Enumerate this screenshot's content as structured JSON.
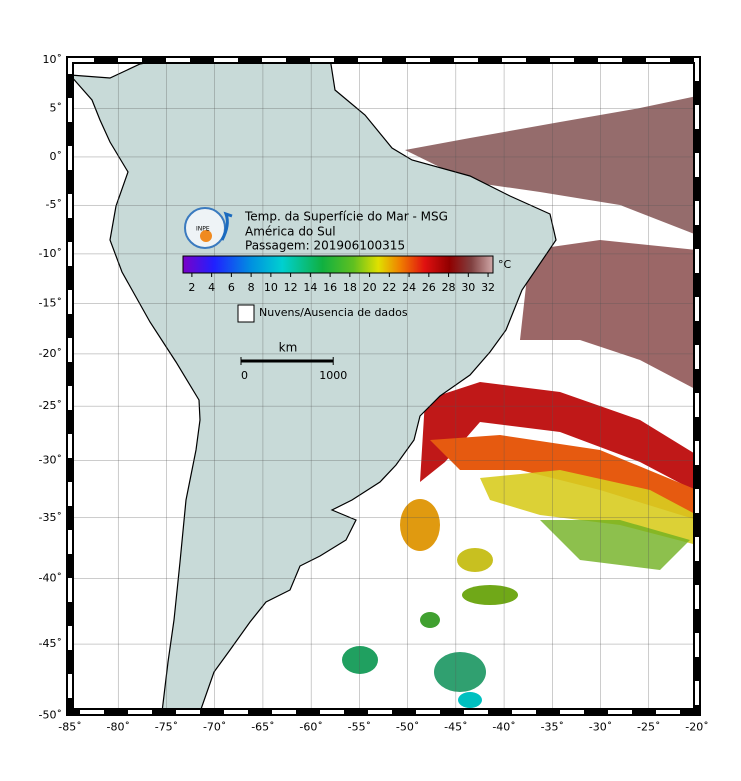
{
  "header": {
    "title": "Temp. da Superfície do Mar - MSG",
    "region": "América do Sul",
    "pass": "Passagem: 201906100315",
    "logo": "INPE"
  },
  "colorbar": {
    "range": [
      1.1,
      32.5
    ],
    "ticks": [
      2,
      4,
      6,
      8,
      10,
      12,
      14,
      16,
      18,
      20,
      22,
      24,
      26,
      28,
      30,
      32
    ],
    "unit": "°C"
  },
  "legend": {
    "label": "Nuvens/Ausencia de dados"
  },
  "scale_bar": {
    "unit": "km",
    "labels": [
      0,
      1000
    ]
  },
  "map": {
    "projection": "mercator",
    "xlim": [
      -85,
      -20
    ],
    "ylim": [
      -50,
      10
    ],
    "xticks": [
      {
        "value": -85,
        "label": "-85˚"
      },
      {
        "value": -80,
        "label": "-80˚"
      },
      {
        "value": -75,
        "label": "-75˚"
      },
      {
        "value": -70,
        "label": "-70˚"
      },
      {
        "value": -65,
        "label": "-65˚"
      },
      {
        "value": -60,
        "label": "-60˚"
      },
      {
        "value": -55,
        "label": "-55˚"
      },
      {
        "value": -50,
        "label": "-50˚"
      },
      {
        "value": -45,
        "label": "-45˚"
      },
      {
        "value": -40,
        "label": "-40˚"
      },
      {
        "value": -35,
        "label": "-35˚"
      },
      {
        "value": -30,
        "label": "-30˚"
      },
      {
        "value": -25,
        "label": "-25˚"
      },
      {
        "value": -20,
        "label": "-20˚"
      }
    ],
    "yticks": [
      {
        "value": 10,
        "label": "10˚"
      },
      {
        "value": 5,
        "label": "5˚"
      },
      {
        "value": 0,
        "label": "0˚"
      },
      {
        "value": -5,
        "label": "-5˚"
      },
      {
        "value": -10,
        "label": "-10˚"
      },
      {
        "value": -15,
        "label": "-15˚"
      },
      {
        "value": -20,
        "label": "-20˚"
      },
      {
        "value": -25,
        "label": "-25˚"
      },
      {
        "value": -30,
        "label": "-30˚"
      },
      {
        "value": -35,
        "label": "-35˚"
      },
      {
        "value": -40,
        "label": "-40˚"
      },
      {
        "value": -45,
        "label": "-45˚"
      },
      {
        "value": -50,
        "label": "-50˚"
      }
    ]
  }
}
